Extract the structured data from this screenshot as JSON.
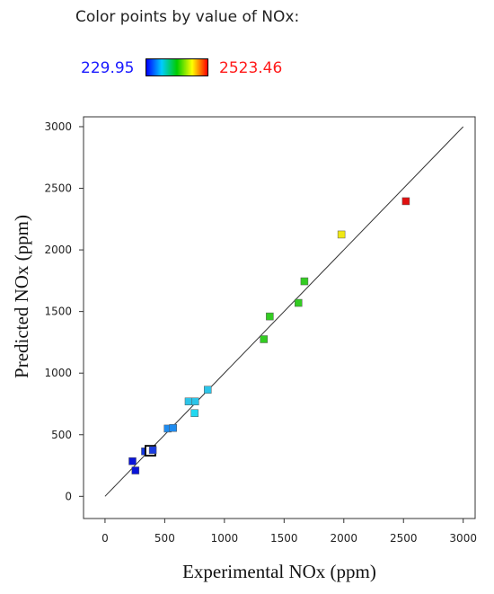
{
  "legend": {
    "title": "Color points by value of NOx:",
    "min_label": "229.95",
    "max_label": "2523.46",
    "gradient_colors": [
      "#0000ff",
      "#00ccff",
      "#00cc00",
      "#ffff00",
      "#ff0000"
    ]
  },
  "chart_data": {
    "type": "scatter",
    "title": "",
    "xlabel": "Experimental NOx (ppm)",
    "ylabel": "Predicted NOx (ppm)",
    "xlim": [
      -180,
      3100
    ],
    "ylim": [
      -180,
      3080
    ],
    "xticks": [
      0,
      500,
      1000,
      1500,
      2000,
      2500,
      3000
    ],
    "yticks": [
      0,
      500,
      1000,
      1500,
      2000,
      2500,
      3000
    ],
    "grid": false,
    "reference_line": {
      "from": [
        0,
        0
      ],
      "to": [
        3000,
        3000
      ]
    },
    "series": [
      {
        "points": [
          {
            "x": 230,
            "y": 285,
            "color": "#0a14d8"
          },
          {
            "x": 255,
            "y": 210,
            "color": "#0a14d8"
          },
          {
            "x": 335,
            "y": 365,
            "color": "#1438e0"
          },
          {
            "x": 380,
            "y": 370,
            "color": "#1438e0",
            "highlighted": true
          },
          {
            "x": 400,
            "y": 375,
            "color": "#1a3ce0"
          },
          {
            "x": 525,
            "y": 550,
            "color": "#1e8cf0"
          },
          {
            "x": 570,
            "y": 555,
            "color": "#1e8cf0"
          },
          {
            "x": 700,
            "y": 770,
            "color": "#2cc4e8"
          },
          {
            "x": 750,
            "y": 675,
            "color": "#22d8f0"
          },
          {
            "x": 755,
            "y": 770,
            "color": "#2cc4e8"
          },
          {
            "x": 860,
            "y": 865,
            "color": "#2cc4e8"
          },
          {
            "x": 1330,
            "y": 1275,
            "color": "#33cc22"
          },
          {
            "x": 1380,
            "y": 1460,
            "color": "#33cc22"
          },
          {
            "x": 1620,
            "y": 1570,
            "color": "#33cc22"
          },
          {
            "x": 1670,
            "y": 1745,
            "color": "#33cc22"
          },
          {
            "x": 1980,
            "y": 2125,
            "color": "#f0e814"
          },
          {
            "x": 2520,
            "y": 2395,
            "color": "#e01010"
          }
        ]
      }
    ]
  }
}
